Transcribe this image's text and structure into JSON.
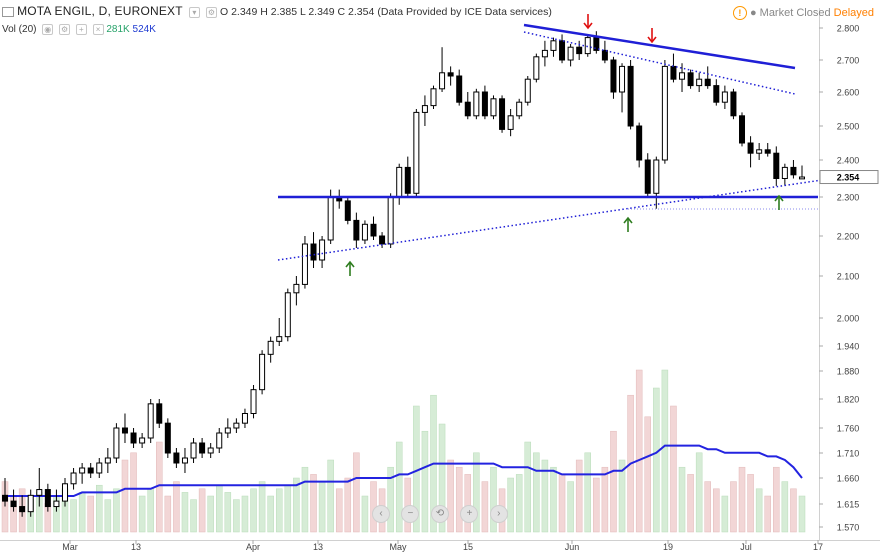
{
  "header": {
    "symbol": "MOTA ENGIL, D, EURONEXT",
    "ohlc": "O 2.349  H 2.385  L 2.349  C 2.354",
    "provider": "(Data Provided by ICE Data services)",
    "volume_label": "Vol (20)",
    "volume_value_1": "281K",
    "volume_value_2": "524K",
    "market_status": "Market Closed",
    "delay_status": "Delayed"
  },
  "colors": {
    "trendline": "#1f1fd6",
    "vol_ma": "#2323e0",
    "arrow_red": "#e01010",
    "arrow_green": "#2e7d1f",
    "up_volume": "#d6ecd6",
    "down_volume": "#f2d6d6"
  },
  "chart_data": {
    "type": "candlestick",
    "price_axis_ticks": [
      "2.800",
      "2.700",
      "2.600",
      "2.500",
      "2.400",
      "2.300",
      "2.200",
      "2.100",
      "2.000",
      "1.940",
      "1.880",
      "1.820",
      "1.760",
      "1.710",
      "1.660",
      "1.615",
      "1.570"
    ],
    "last_price_label": "2.354",
    "x_tick_labels": [
      "Mar",
      "13",
      "Apr",
      "13",
      "May",
      "15",
      "Jun",
      "19",
      "Jul",
      "17"
    ],
    "candles": [
      [
        1.63,
        1.66,
        1.61,
        1.62
      ],
      [
        1.62,
        1.64,
        1.6,
        1.61
      ],
      [
        1.61,
        1.63,
        1.59,
        1.6
      ],
      [
        1.6,
        1.64,
        1.59,
        1.63
      ],
      [
        1.63,
        1.68,
        1.61,
        1.64
      ],
      [
        1.64,
        1.65,
        1.6,
        1.61
      ],
      [
        1.61,
        1.64,
        1.6,
        1.62
      ],
      [
        1.62,
        1.66,
        1.61,
        1.65
      ],
      [
        1.65,
        1.68,
        1.64,
        1.67
      ],
      [
        1.67,
        1.69,
        1.65,
        1.68
      ],
      [
        1.68,
        1.69,
        1.66,
        1.67
      ],
      [
        1.67,
        1.7,
        1.66,
        1.69
      ],
      [
        1.69,
        1.72,
        1.67,
        1.7
      ],
      [
        1.7,
        1.77,
        1.69,
        1.76
      ],
      [
        1.76,
        1.79,
        1.73,
        1.75
      ],
      [
        1.75,
        1.76,
        1.72,
        1.73
      ],
      [
        1.73,
        1.75,
        1.72,
        1.74
      ],
      [
        1.74,
        1.82,
        1.73,
        1.81
      ],
      [
        1.81,
        1.82,
        1.76,
        1.77
      ],
      [
        1.77,
        1.78,
        1.7,
        1.71
      ],
      [
        1.71,
        1.72,
        1.68,
        1.69
      ],
      [
        1.69,
        1.72,
        1.67,
        1.7
      ],
      [
        1.7,
        1.74,
        1.69,
        1.73
      ],
      [
        1.73,
        1.74,
        1.7,
        1.71
      ],
      [
        1.71,
        1.73,
        1.7,
        1.72
      ],
      [
        1.72,
        1.76,
        1.71,
        1.75
      ],
      [
        1.75,
        1.78,
        1.74,
        1.76
      ],
      [
        1.76,
        1.78,
        1.75,
        1.77
      ],
      [
        1.77,
        1.8,
        1.76,
        1.79
      ],
      [
        1.79,
        1.85,
        1.78,
        1.84
      ],
      [
        1.84,
        1.93,
        1.83,
        1.92
      ],
      [
        1.92,
        1.96,
        1.9,
        1.95
      ],
      [
        1.95,
        2.0,
        1.94,
        1.96
      ],
      [
        1.96,
        2.07,
        1.95,
        2.06
      ],
      [
        2.06,
        2.1,
        2.03,
        2.08
      ],
      [
        2.08,
        2.2,
        2.07,
        2.18
      ],
      [
        2.18,
        2.21,
        2.12,
        2.14
      ],
      [
        2.14,
        2.2,
        2.12,
        2.19
      ],
      [
        2.19,
        2.32,
        2.18,
        2.3
      ],
      [
        2.3,
        2.32,
        2.27,
        2.29
      ],
      [
        2.29,
        2.3,
        2.23,
        2.24
      ],
      [
        2.24,
        2.26,
        2.17,
        2.19
      ],
      [
        2.19,
        2.24,
        2.18,
        2.23
      ],
      [
        2.23,
        2.25,
        2.19,
        2.2
      ],
      [
        2.2,
        2.21,
        2.17,
        2.18
      ],
      [
        2.18,
        2.31,
        2.17,
        2.3
      ],
      [
        2.3,
        2.39,
        2.28,
        2.38
      ],
      [
        2.38,
        2.41,
        2.3,
        2.31
      ],
      [
        2.31,
        2.55,
        2.3,
        2.54
      ],
      [
        2.54,
        2.59,
        2.5,
        2.56
      ],
      [
        2.56,
        2.62,
        2.55,
        2.61
      ],
      [
        2.61,
        2.74,
        2.6,
        2.66
      ],
      [
        2.66,
        2.68,
        2.62,
        2.65
      ],
      [
        2.65,
        2.67,
        2.56,
        2.57
      ],
      [
        2.57,
        2.6,
        2.52,
        2.53
      ],
      [
        2.53,
        2.61,
        2.52,
        2.6
      ],
      [
        2.6,
        2.62,
        2.52,
        2.53
      ],
      [
        2.53,
        2.59,
        2.52,
        2.58
      ],
      [
        2.58,
        2.59,
        2.48,
        2.49
      ],
      [
        2.49,
        2.55,
        2.47,
        2.53
      ],
      [
        2.53,
        2.58,
        2.52,
        2.57
      ],
      [
        2.57,
        2.65,
        2.56,
        2.64
      ],
      [
        2.64,
        2.72,
        2.63,
        2.71
      ],
      [
        2.71,
        2.76,
        2.68,
        2.73
      ],
      [
        2.73,
        2.77,
        2.71,
        2.76
      ],
      [
        2.76,
        2.78,
        2.69,
        2.7
      ],
      [
        2.7,
        2.75,
        2.68,
        2.74
      ],
      [
        2.74,
        2.76,
        2.7,
        2.72
      ],
      [
        2.72,
        2.78,
        2.71,
        2.77
      ],
      [
        2.77,
        2.79,
        2.72,
        2.73
      ],
      [
        2.73,
        2.76,
        2.69,
        2.7
      ],
      [
        2.7,
        2.71,
        2.58,
        2.6
      ],
      [
        2.6,
        2.69,
        2.54,
        2.68
      ],
      [
        2.68,
        2.7,
        2.49,
        2.5
      ],
      [
        2.5,
        2.51,
        2.38,
        2.4
      ],
      [
        2.4,
        2.42,
        2.3,
        2.31
      ],
      [
        2.31,
        2.41,
        2.27,
        2.4
      ],
      [
        2.4,
        2.7,
        2.39,
        2.68
      ],
      [
        2.68,
        2.72,
        2.63,
        2.64
      ],
      [
        2.64,
        2.69,
        2.6,
        2.66
      ],
      [
        2.66,
        2.67,
        2.61,
        2.62
      ],
      [
        2.62,
        2.66,
        2.6,
        2.64
      ],
      [
        2.64,
        2.68,
        2.61,
        2.62
      ],
      [
        2.62,
        2.64,
        2.56,
        2.57
      ],
      [
        2.57,
        2.62,
        2.55,
        2.6
      ],
      [
        2.6,
        2.61,
        2.52,
        2.53
      ],
      [
        2.53,
        2.54,
        2.44,
        2.45
      ],
      [
        2.45,
        2.47,
        2.38,
        2.42
      ],
      [
        2.42,
        2.45,
        2.4,
        2.43
      ],
      [
        2.43,
        2.45,
        2.41,
        2.42
      ],
      [
        2.42,
        2.44,
        2.33,
        2.35
      ],
      [
        2.35,
        2.39,
        2.33,
        2.38
      ],
      [
        2.38,
        2.4,
        2.35,
        2.36
      ],
      [
        2.349,
        2.385,
        2.349,
        2.354
      ]
    ],
    "volumes": [
      0.14,
      0.1,
      0.12,
      0.09,
      0.11,
      0.08,
      0.1,
      0.12,
      0.09,
      0.11,
      0.1,
      0.13,
      0.09,
      0.12,
      0.2,
      0.22,
      0.1,
      0.12,
      0.25,
      0.1,
      0.14,
      0.11,
      0.09,
      0.12,
      0.1,
      0.13,
      0.11,
      0.09,
      0.1,
      0.12,
      0.14,
      0.1,
      0.12,
      0.13,
      0.15,
      0.18,
      0.16,
      0.14,
      0.2,
      0.12,
      0.15,
      0.22,
      0.1,
      0.14,
      0.12,
      0.18,
      0.25,
      0.15,
      0.35,
      0.28,
      0.38,
      0.3,
      0.2,
      0.18,
      0.16,
      0.22,
      0.14,
      0.18,
      0.12,
      0.15,
      0.16,
      0.25,
      0.22,
      0.2,
      0.18,
      0.16,
      0.14,
      0.2,
      0.22,
      0.15,
      0.18,
      0.28,
      0.2,
      0.38,
      0.45,
      0.32,
      0.4,
      0.45,
      0.35,
      0.18,
      0.16,
      0.22,
      0.14,
      0.12,
      0.1,
      0.14,
      0.18,
      0.16,
      0.12,
      0.1,
      0.18,
      0.14,
      0.12,
      0.1
    ],
    "volume_ma": [
      0.1,
      0.1,
      0.1,
      0.1,
      0.1,
      0.1,
      0.1,
      0.1,
      0.1,
      0.11,
      0.11,
      0.11,
      0.11,
      0.11,
      0.12,
      0.12,
      0.12,
      0.12,
      0.13,
      0.13,
      0.13,
      0.13,
      0.13,
      0.13,
      0.13,
      0.13,
      0.13,
      0.13,
      0.13,
      0.13,
      0.13,
      0.13,
      0.13,
      0.13,
      0.13,
      0.14,
      0.14,
      0.14,
      0.14,
      0.14,
      0.14,
      0.15,
      0.15,
      0.15,
      0.15,
      0.15,
      0.16,
      0.16,
      0.17,
      0.18,
      0.19,
      0.19,
      0.19,
      0.19,
      0.19,
      0.19,
      0.19,
      0.19,
      0.18,
      0.18,
      0.18,
      0.18,
      0.17,
      0.17,
      0.17,
      0.16,
      0.16,
      0.16,
      0.16,
      0.16,
      0.16,
      0.17,
      0.17,
      0.19,
      0.2,
      0.21,
      0.22,
      0.24,
      0.24,
      0.24,
      0.24,
      0.24,
      0.23,
      0.23,
      0.22,
      0.22,
      0.22,
      0.22,
      0.22,
      0.21,
      0.21,
      0.2,
      0.18,
      0.15
    ],
    "horizontal_level": 2.3
  }
}
